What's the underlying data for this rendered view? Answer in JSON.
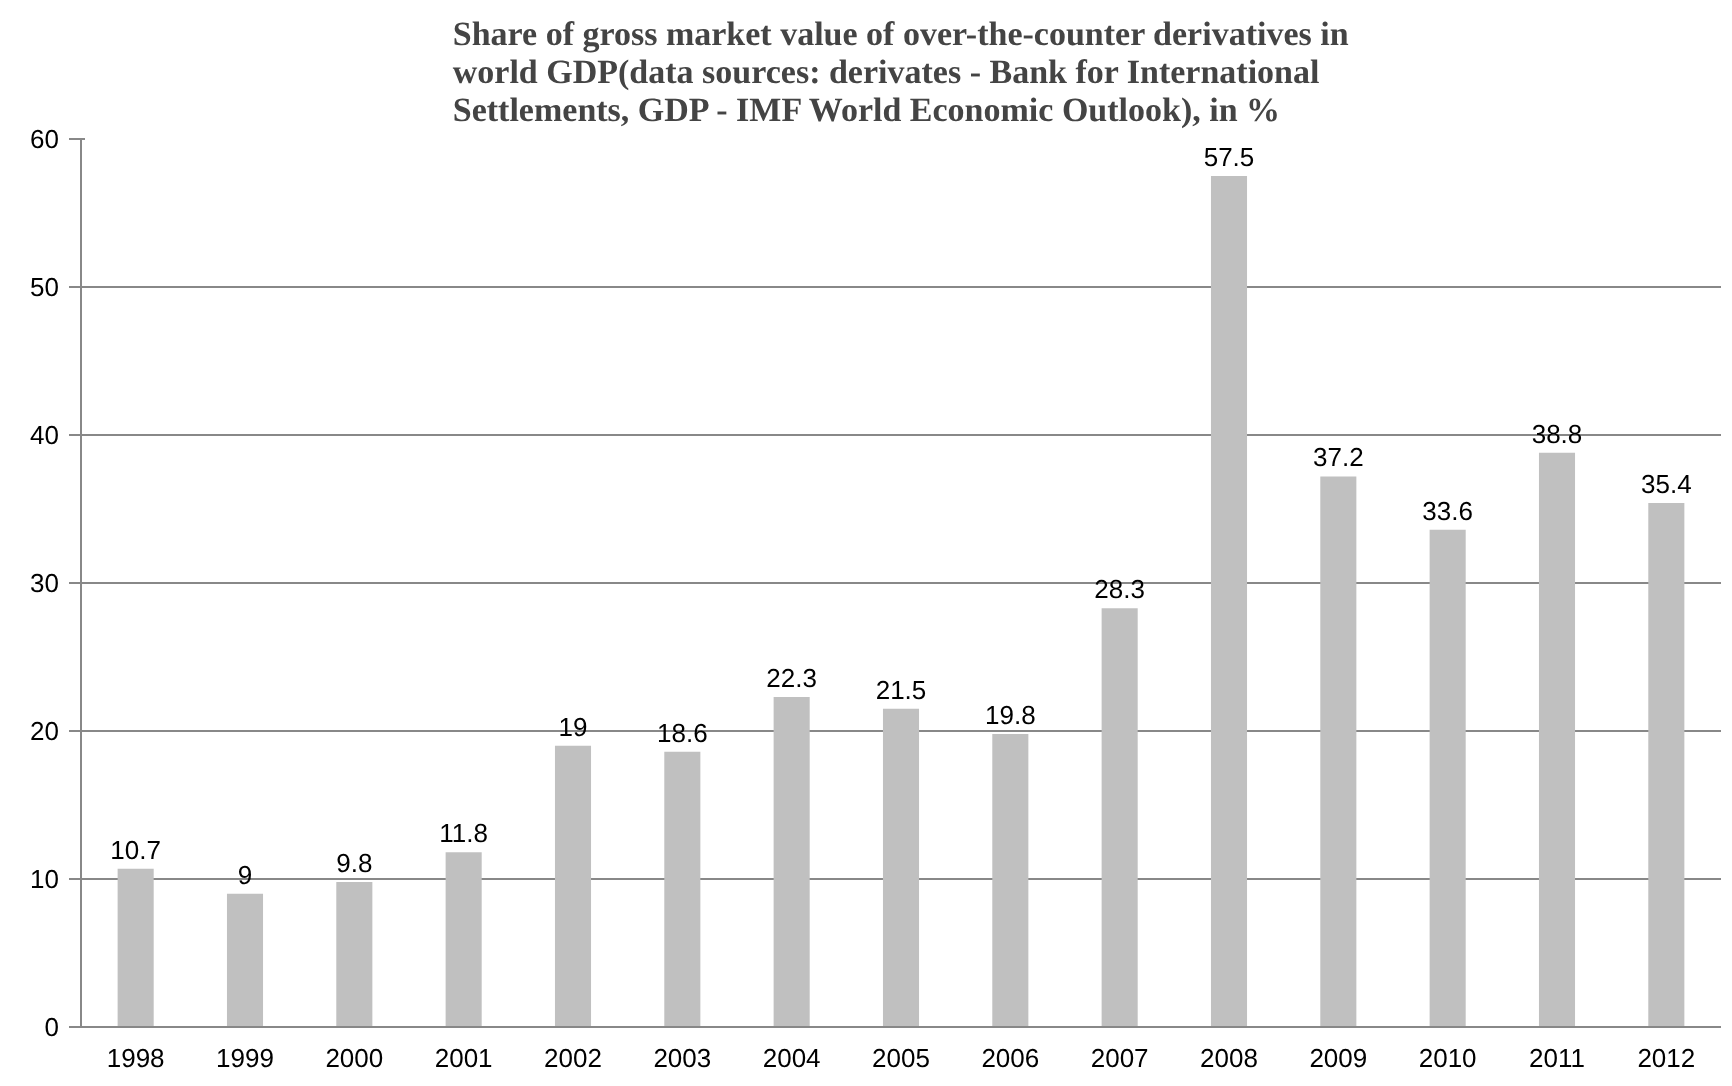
{
  "chart_data": {
    "type": "bar",
    "title": "Share of gross market value of over-the-counter derivatives in world GDP(data sources: derivates - Bank for International Settlements, GDP - IMF World Economic Outlook), in %",
    "categories": [
      "1998",
      "1999",
      "2000",
      "2001",
      "2002",
      "2003",
      "2004",
      "2005",
      "2006",
      "2007",
      "2008",
      "2009",
      "2010",
      "2011",
      "2012"
    ],
    "values": [
      10.7,
      9,
      9.8,
      11.8,
      19,
      18.6,
      22.3,
      21.5,
      19.8,
      28.3,
      57.5,
      37.2,
      33.6,
      38.8,
      35.4
    ],
    "color": "#c0c0c0",
    "ylim": [
      0,
      60
    ],
    "yticks": [
      0,
      10,
      20,
      30,
      40,
      50,
      60
    ],
    "grid": "y",
    "data_labels": true
  }
}
